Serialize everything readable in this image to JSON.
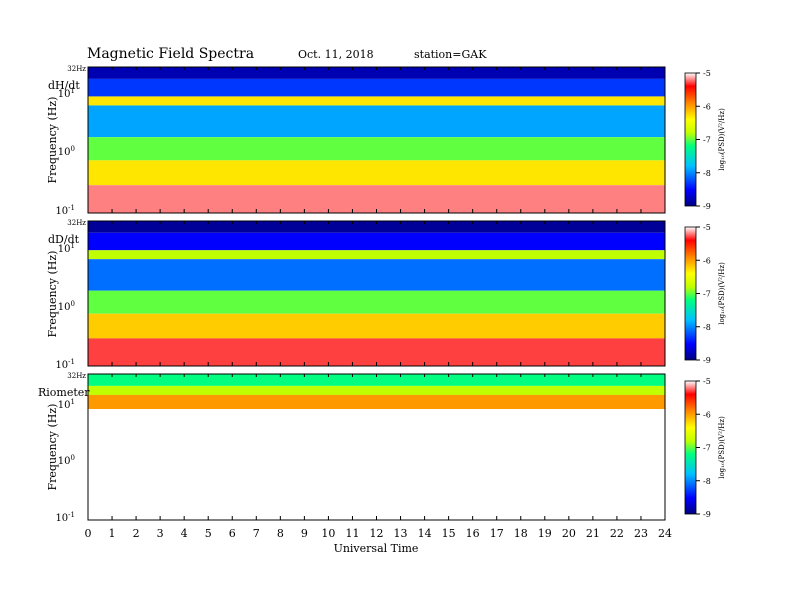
{
  "header": {
    "title": "Magnetic  Field  Spectra",
    "date": "Oct. 11, 2018",
    "station": "station=GAK"
  },
  "chart_data": {
    "type": "heatmap",
    "xlabel": "Universal Time",
    "xlim": [
      0,
      24
    ],
    "x_ticks": [
      "0",
      "1",
      "2",
      "3",
      "4",
      "5",
      "6",
      "7",
      "8",
      "9",
      "10",
      "11",
      "12",
      "13",
      "14",
      "15",
      "16",
      "17",
      "18",
      "19",
      "20",
      "21",
      "22",
      "23",
      "24"
    ],
    "colorbar": {
      "label": "log10(PSD)(V^2/Hz)",
      "label_display": "log₁₀(PSD)(V²/Hz)",
      "ticks": [
        "-5",
        "-6",
        "-7",
        "-8",
        "-9"
      ],
      "range": [
        -9,
        -5
      ],
      "colors": [
        "#000080",
        "#0000ff",
        "#00c0ff",
        "#00ff80",
        "#c0ff00",
        "#ffff00",
        "#ff8000",
        "#ff0000",
        "#ffffff"
      ]
    },
    "panels": [
      {
        "name": "dH/dt",
        "ylabel": "Frequency  (Hz)",
        "top_label": "32Hz",
        "ylim": [
          0.1,
          32
        ],
        "yscale": "log",
        "bands": [
          {
            "f_low": 20,
            "f_high": 32,
            "log_psd": -8.8
          },
          {
            "f_low": 10,
            "f_high": 20,
            "log_psd": -8.3
          },
          {
            "f_low": 7,
            "f_high": 10,
            "log_psd": -6.3
          },
          {
            "f_low": 2,
            "f_high": 7,
            "log_psd": -7.9
          },
          {
            "f_low": 0.8,
            "f_high": 2,
            "log_psd": -7.0
          },
          {
            "f_low": 0.3,
            "f_high": 0.8,
            "log_psd": -6.3
          },
          {
            "f_low": 0.1,
            "f_high": 0.3,
            "log_psd": -5.2
          }
        ]
      },
      {
        "name": "dD/dt",
        "ylabel": "Frequency  (Hz)",
        "top_label": "32Hz",
        "ylim": [
          0.1,
          32
        ],
        "yscale": "log",
        "bands": [
          {
            "f_low": 20,
            "f_high": 32,
            "log_psd": -8.9
          },
          {
            "f_low": 10,
            "f_high": 20,
            "log_psd": -8.5
          },
          {
            "f_low": 7,
            "f_high": 10,
            "log_psd": -6.8
          },
          {
            "f_low": 2,
            "f_high": 7,
            "log_psd": -8.1
          },
          {
            "f_low": 0.8,
            "f_high": 2,
            "log_psd": -7.0
          },
          {
            "f_low": 0.3,
            "f_high": 0.8,
            "log_psd": -6.2
          },
          {
            "f_low": 0.1,
            "f_high": 0.3,
            "log_psd": -5.3
          }
        ]
      },
      {
        "name": "Riometer",
        "ylabel": "Frequency  (Hz)",
        "top_label": "32Hz",
        "ylim": [
          0.1,
          32
        ],
        "yscale": "log",
        "bands": [
          {
            "f_low": 20,
            "f_high": 32,
            "log_psd": -7.2
          },
          {
            "f_low": 14,
            "f_high": 20,
            "log_psd": -6.8
          },
          {
            "f_low": 8,
            "f_high": 14,
            "log_psd": -6.0
          },
          {
            "f_low": 0.1,
            "f_high": 8,
            "log_psd": -5.0
          }
        ]
      }
    ]
  }
}
